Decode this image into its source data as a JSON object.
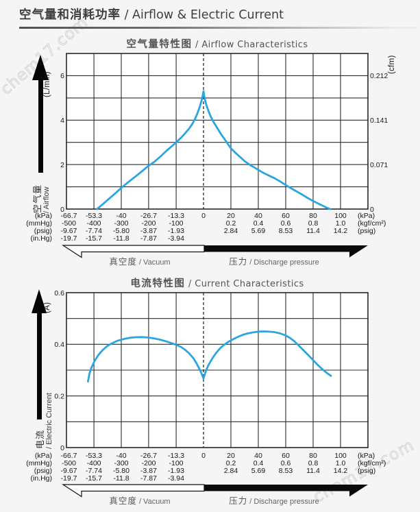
{
  "header": {
    "title_zh": "空气量和消耗功率",
    "title_en": " / Airflow & Electric Current"
  },
  "watermark": {
    "text": "chem17.com"
  },
  "x_axis": {
    "rows": [
      {
        "unit_left": "(kPa)",
        "left": [
          "-66.7",
          "-53.3",
          "-40",
          "-26.7",
          "-13.3",
          "0"
        ],
        "right": [
          "20",
          "40",
          "60",
          "80",
          "100"
        ],
        "unit_right": "(kPa)"
      },
      {
        "unit_left": "(mmHg)",
        "left": [
          "-500",
          "-400",
          "-300",
          "-200",
          "-100"
        ],
        "right": [
          "0.2",
          "0.4",
          "0.6",
          "0.8",
          "1.0"
        ],
        "unit_right": "(kgf/cm²)"
      },
      {
        "unit_left": "(psig)",
        "left": [
          "-9.67",
          "-7.74",
          "-5.80",
          "-3.87",
          "-1.93"
        ],
        "right": [
          "2.84",
          "5.69",
          "8.53",
          "11.4",
          "14.2"
        ],
        "unit_right": "(psig)"
      },
      {
        "unit_left": "(in.Hg)",
        "left": [
          "-19.7",
          "-15.7",
          "-11.8",
          "-7.87",
          "-3.94"
        ],
        "right": [],
        "unit_right": ""
      }
    ],
    "vacuum_label_zh": "真空度",
    "vacuum_label_en": " / Vacuum",
    "pressure_label_zh": "压力",
    "pressure_label_en": " / Discharge pressure"
  },
  "chart_data": [
    {
      "type": "line",
      "title_zh": "空气量特性图",
      "title_en": " / Airflow Characteristics",
      "xlabel": "Pressure (kPa)",
      "ylabel": "Airflow (L/min)",
      "xlim": [
        -66.7,
        120
      ],
      "y_axis": {
        "unit": "(L/min)",
        "arrow_zh": "空气量",
        "arrow_en": "/ Airflow",
        "ticks": [
          0,
          2,
          4,
          6
        ],
        "ylim": [
          0,
          7
        ],
        "grid_step": 1
      },
      "right_axis": {
        "unit": "(cfm)",
        "ticks": [
          [
            0,
            "0"
          ],
          [
            2,
            "0.071"
          ],
          [
            4,
            "0.141"
          ],
          [
            6,
            "0.212"
          ]
        ]
      },
      "line_color": "#29a5df",
      "points": [
        [
          -51.8,
          0
        ],
        [
          -49,
          0.22
        ],
        [
          -46,
          0.46
        ],
        [
          -43,
          0.7
        ],
        [
          -40,
          0.95
        ],
        [
          -37,
          1.18
        ],
        [
          -34,
          1.4
        ],
        [
          -31,
          1.62
        ],
        [
          -28,
          1.85
        ],
        [
          -26.7,
          1.95
        ],
        [
          -24,
          2.12
        ],
        [
          -21,
          2.36
        ],
        [
          -18,
          2.62
        ],
        [
          -15,
          2.86
        ],
        [
          -13.3,
          3.0
        ],
        [
          -11,
          3.2
        ],
        [
          -9,
          3.4
        ],
        [
          -7,
          3.62
        ],
        [
          -5.5,
          3.82
        ],
        [
          -4,
          4.08
        ],
        [
          -3,
          4.3
        ],
        [
          -2,
          4.55
        ],
        [
          -1,
          4.85
        ],
        [
          -0.5,
          5.05
        ],
        [
          0,
          5.3
        ],
        [
          0.5,
          5.1
        ],
        [
          1,
          4.95
        ],
        [
          2,
          4.7
        ],
        [
          3,
          4.52
        ],
        [
          4,
          4.35
        ],
        [
          5,
          4.2
        ],
        [
          7,
          3.95
        ],
        [
          9,
          3.75
        ],
        [
          11,
          3.55
        ],
        [
          13,
          3.35
        ],
        [
          15,
          3.18
        ],
        [
          17,
          3.0
        ],
        [
          20,
          2.73
        ],
        [
          23,
          2.55
        ],
        [
          26,
          2.38
        ],
        [
          30,
          2.16
        ],
        [
          34,
          1.98
        ],
        [
          38,
          1.84
        ],
        [
          40,
          1.76
        ],
        [
          44,
          1.62
        ],
        [
          48,
          1.5
        ],
        [
          52,
          1.38
        ],
        [
          56,
          1.24
        ],
        [
          60,
          1.08
        ],
        [
          64,
          0.93
        ],
        [
          68,
          0.79
        ],
        [
          72,
          0.65
        ],
        [
          76,
          0.5
        ],
        [
          80,
          0.36
        ],
        [
          84,
          0.24
        ],
        [
          87,
          0.15
        ],
        [
          90,
          0.06
        ],
        [
          92.5,
          0
        ]
      ]
    },
    {
      "type": "line",
      "title_zh": "电流特性图",
      "title_en": " / Current Characteristics",
      "xlabel": "Pressure (kPa)",
      "ylabel": "Electric Current (A)",
      "xlim": [
        -66.7,
        120
      ],
      "y_axis": {
        "unit": "(A)",
        "arrow_zh": "电流",
        "arrow_en": "/ Electric Current",
        "ticks": [
          0,
          0.2,
          0.4,
          0.6
        ],
        "ylim": [
          0,
          0.6
        ],
        "grid_step": 0.1
      },
      "right_axis": null,
      "line_color": "#29a5df",
      "points": [
        [
          -56.2,
          0.256
        ],
        [
          -55.5,
          0.285
        ],
        [
          -54.5,
          0.31
        ],
        [
          -53,
          0.335
        ],
        [
          -51,
          0.36
        ],
        [
          -49,
          0.378
        ],
        [
          -47,
          0.392
        ],
        [
          -45,
          0.402
        ],
        [
          -42,
          0.413
        ],
        [
          -39,
          0.42
        ],
        [
          -36,
          0.425
        ],
        [
          -33,
          0.4275
        ],
        [
          -30,
          0.428
        ],
        [
          -27,
          0.4265
        ],
        [
          -24,
          0.423
        ],
        [
          -21,
          0.418
        ],
        [
          -18,
          0.411
        ],
        [
          -15,
          0.403
        ],
        [
          -13.3,
          0.398
        ],
        [
          -11,
          0.39
        ],
        [
          -9,
          0.379
        ],
        [
          -7,
          0.365
        ],
        [
          -5,
          0.347
        ],
        [
          -3.5,
          0.328
        ],
        [
          -2,
          0.305
        ],
        [
          -1,
          0.288
        ],
        [
          0,
          0.267
        ],
        [
          1,
          0.285
        ],
        [
          2,
          0.3
        ],
        [
          3.5,
          0.318
        ],
        [
          5,
          0.332
        ],
        [
          7,
          0.35
        ],
        [
          9,
          0.365
        ],
        [
          12,
          0.384
        ],
        [
          15,
          0.398
        ],
        [
          18,
          0.409
        ],
        [
          21,
          0.418
        ],
        [
          24,
          0.426
        ],
        [
          27,
          0.433
        ],
        [
          30,
          0.439
        ],
        [
          33,
          0.443
        ],
        [
          36,
          0.446
        ],
        [
          40,
          0.449
        ],
        [
          44,
          0.45
        ],
        [
          48,
          0.449
        ],
        [
          52,
          0.447
        ],
        [
          56,
          0.442
        ],
        [
          60,
          0.434
        ],
        [
          63,
          0.425
        ],
        [
          66,
          0.413
        ],
        [
          69,
          0.398
        ],
        [
          72,
          0.382
        ],
        [
          75,
          0.366
        ],
        [
          78,
          0.35
        ],
        [
          81,
          0.333
        ],
        [
          84,
          0.317
        ],
        [
          87,
          0.302
        ],
        [
          90,
          0.289
        ],
        [
          93,
          0.278
        ]
      ]
    }
  ]
}
